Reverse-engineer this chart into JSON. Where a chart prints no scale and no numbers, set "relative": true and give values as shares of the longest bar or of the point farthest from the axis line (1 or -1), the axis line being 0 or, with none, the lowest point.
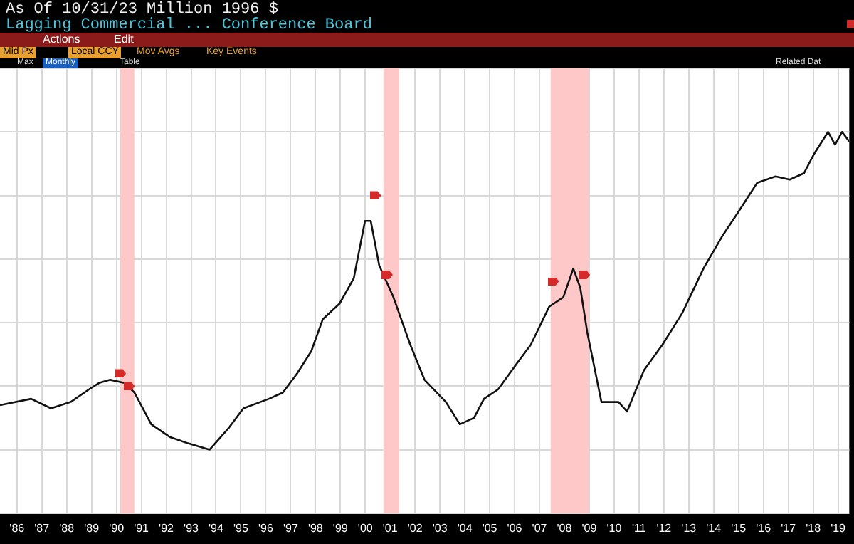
{
  "chart_data": {
    "type": "line",
    "title": "Lagging Commercial ...",
    "subtitle": "As Of 10/31/23  Million 1996 $",
    "annotations": [
      "Conference Board",
      "Actions",
      "Edit",
      "Mid Px",
      "Local CCY",
      "Mov Avgs",
      "Key Events",
      "Max",
      "Monthly",
      "Table",
      "Related Dat"
    ],
    "relative": true,
    "xlim": [
      1985.32,
      2019.45
    ],
    "xticks": [
      {
        "value": 1986,
        "label": "'86"
      },
      {
        "value": 1987,
        "label": "'87"
      },
      {
        "value": 1988,
        "label": "'88"
      },
      {
        "value": 1989,
        "label": "'89"
      },
      {
        "value": 1990,
        "label": "'90"
      },
      {
        "value": 1991,
        "label": "'91"
      },
      {
        "value": 1992,
        "label": "'92"
      },
      {
        "value": 1993,
        "label": "'93"
      },
      {
        "value": 1994,
        "label": "'94"
      },
      {
        "value": 1995,
        "label": "'95"
      },
      {
        "value": 1996,
        "label": "'96"
      },
      {
        "value": 1997,
        "label": "'97"
      },
      {
        "value": 1998,
        "label": "'98"
      },
      {
        "value": 1999,
        "label": "'99"
      },
      {
        "value": 2000,
        "label": "'00"
      },
      {
        "value": 2001,
        "label": "'01"
      },
      {
        "value": 2002,
        "label": "'02"
      },
      {
        "value": 2003,
        "label": "'03"
      },
      {
        "value": 2004,
        "label": "'04"
      },
      {
        "value": 2005,
        "label": "'05"
      },
      {
        "value": 2006,
        "label": "'06"
      },
      {
        "value": 2007,
        "label": "'07"
      },
      {
        "value": 2008,
        "label": "'08"
      },
      {
        "value": 2009,
        "label": "'09"
      },
      {
        "value": 2010,
        "label": "'10"
      },
      {
        "value": 2011,
        "label": "'11"
      },
      {
        "value": 2012,
        "label": "'12"
      },
      {
        "value": 2013,
        "label": "'13"
      },
      {
        "value": 2014,
        "label": "'14"
      },
      {
        "value": 2015,
        "label": "'15"
      },
      {
        "value": 2016,
        "label": "'16"
      },
      {
        "value": 2017,
        "label": "'17"
      },
      {
        "value": 2018,
        "label": "'18"
      },
      {
        "value": 2019,
        "label": "'19"
      }
    ],
    "grid": true,
    "legend": false,
    "marker": "none",
    "line_style": "solid",
    "bands": [
      {
        "axis": "x",
        "from": 1990.15,
        "to": 1990.72,
        "color": "#ffc8c8"
      },
      {
        "axis": "x",
        "from": 2000.73,
        "to": 2001.36,
        "color": "#ffc8c8"
      },
      {
        "axis": "x",
        "from": 2007.45,
        "to": 2008.98,
        "color": "#ffc8c8"
      }
    ],
    "series": [
      {
        "color": "#111111",
        "x": [
          1985.32,
          1986.57,
          1987.37,
          1988.16,
          1988.9,
          1989.3,
          1989.75,
          1990.32,
          1990.72,
          1991.4,
          1992.14,
          1992.88,
          1993.74,
          1994.53,
          1995.1,
          1996.13,
          1996.69,
          1997.26,
          1997.83,
          1998.29,
          1998.97,
          1999.54,
          1999.99,
          2000.22,
          2000.56,
          2001.13,
          2001.81,
          2002.38,
          2003.24,
          2003.8,
          2004.37,
          2004.77,
          2005.34,
          2006.08,
          2006.65,
          2007.39,
          2007.96,
          2008.36,
          2008.64,
          2008.92,
          2009.49,
          2010.18,
          2010.52,
          2011.2,
          2011.94,
          2012.74,
          2013.59,
          2014.33,
          2015.01,
          2015.75,
          2016.49,
          2017.06,
          2017.63,
          2018.03,
          2018.6,
          2018.88,
          2019.16,
          2019.45
        ],
        "values": [
          0.14,
          0.16,
          0.13,
          0.15,
          0.19,
          0.21,
          0.22,
          0.21,
          0.18,
          0.08,
          0.04,
          0.02,
          0,
          0.07,
          0.13,
          0.16,
          0.18,
          0.24,
          0.31,
          0.41,
          0.46,
          0.54,
          0.72,
          0.72,
          0.58,
          0.48,
          0.33,
          0.22,
          0.15,
          0.08,
          0.1,
          0.16,
          0.19,
          0.27,
          0.33,
          0.45,
          0.48,
          0.57,
          0.51,
          0.37,
          0.15,
          0.15,
          0.12,
          0.25,
          0.33,
          0.43,
          0.57,
          0.67,
          0.75,
          0.84,
          0.86,
          0.85,
          0.87,
          0.93,
          1.0,
          0.96,
          1.0,
          0.97
        ]
      }
    ]
  }
}
